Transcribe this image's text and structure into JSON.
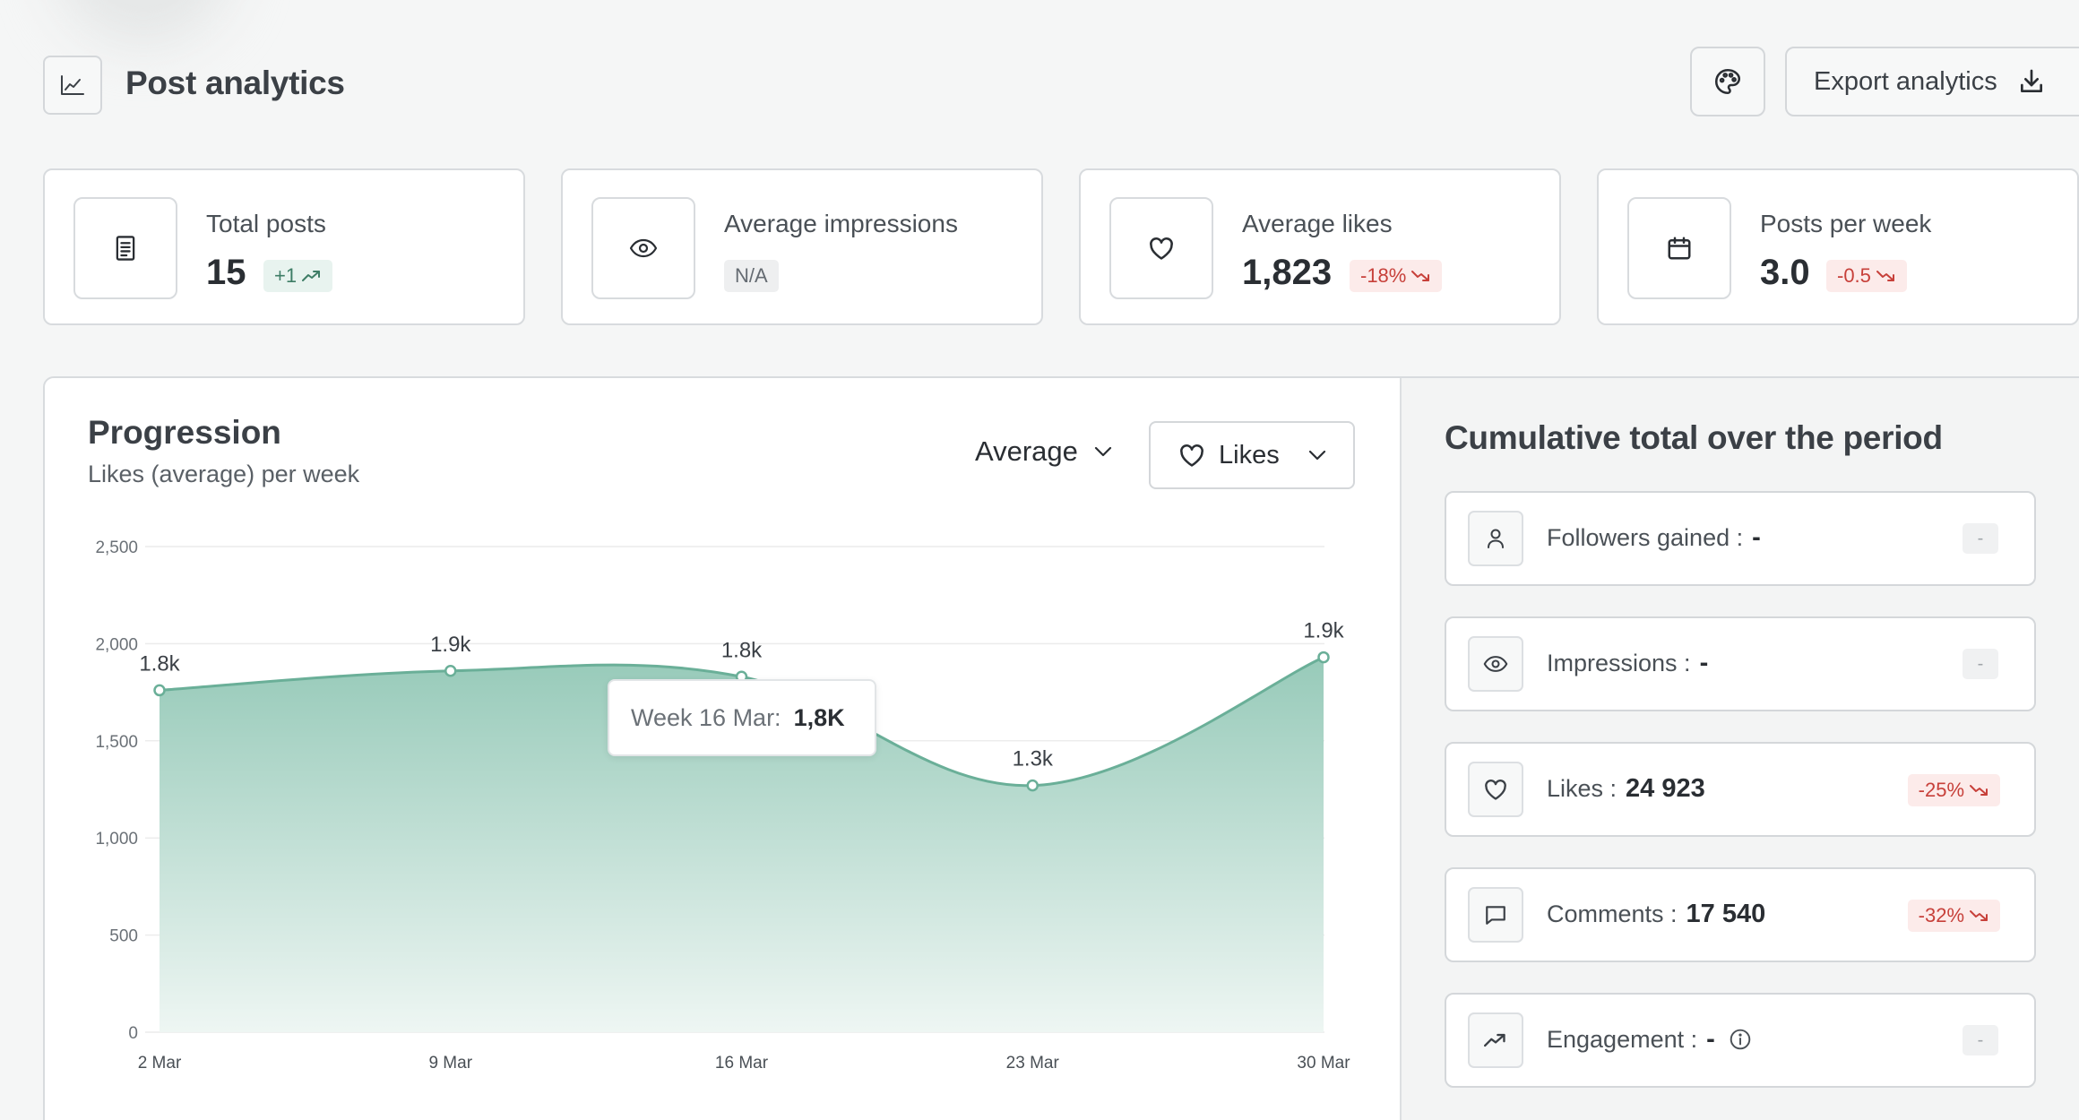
{
  "header": {
    "title": "Post analytics",
    "export_label": "Export analytics"
  },
  "stats": [
    {
      "label": "Total posts",
      "value": "15",
      "badge": "+1",
      "trend": "up",
      "icon": "document-icon"
    },
    {
      "label": "Average impressions",
      "value": "",
      "badge": "N/A",
      "trend": "na",
      "icon": "eye-icon"
    },
    {
      "label": "Average likes",
      "value": "1,823",
      "badge": "-18%",
      "trend": "down",
      "icon": "heart-icon"
    },
    {
      "label": "Posts per week",
      "value": "3.0",
      "badge": "-0.5",
      "trend": "down",
      "icon": "calendar-icon"
    }
  ],
  "progression": {
    "title": "Progression",
    "subtitle": "Likes (average) per week",
    "aggregation": "Average",
    "metric": "Likes",
    "tooltip_label": "Week 16 Mar:",
    "tooltip_value": "1,8K"
  },
  "cumulative": {
    "title": "Cumulative total over the period",
    "rows": [
      {
        "label": "Followers gained :",
        "value": "-",
        "badge": "-",
        "trend": "none",
        "icon": "user-icon"
      },
      {
        "label": "Impressions :",
        "value": "-",
        "badge": "-",
        "trend": "none",
        "icon": "eye-icon"
      },
      {
        "label": "Likes :",
        "value": "24 923",
        "badge": "-25%",
        "trend": "down",
        "icon": "heart-icon"
      },
      {
        "label": "Comments :",
        "value": "17 540",
        "badge": "-32%",
        "trend": "down",
        "icon": "comment-icon"
      },
      {
        "label": "Engagement :",
        "value": "-",
        "badge": "-",
        "trend": "none",
        "icon": "trending-up-icon"
      }
    ]
  },
  "colors": {
    "line": "#6aaf98",
    "fill_top": "#97cab9",
    "fill_bottom": "#eef6f3",
    "up": "#3e7d66",
    "down": "#c7403a"
  },
  "chart_data": {
    "type": "area",
    "categories": [
      "2 Mar",
      "9 Mar",
      "16 Mar",
      "23 Mar",
      "30 Mar"
    ],
    "values": [
      1760,
      1860,
      1830,
      1270,
      1930
    ],
    "data_labels": [
      "1.8k",
      "1.9k",
      "1.8k",
      "1.3k",
      "1.9k"
    ],
    "y_ticks": [
      0,
      500,
      1000,
      1500,
      2000,
      2500
    ],
    "y_tick_labels": [
      "0",
      "500",
      "1,000",
      "1,500",
      "2,000",
      "2,500"
    ],
    "ylim": [
      0,
      2500
    ],
    "grid": true,
    "legend": "none"
  }
}
